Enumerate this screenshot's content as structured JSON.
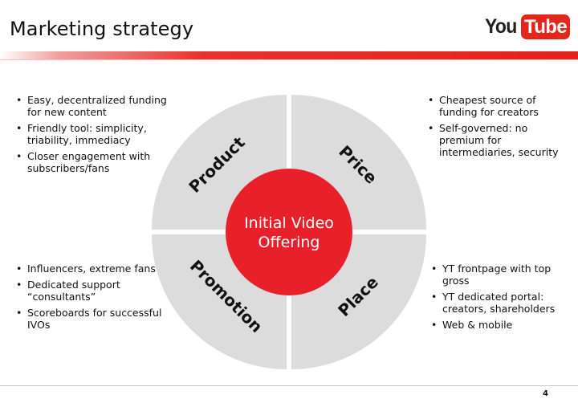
{
  "slide": {
    "title": "Marketing strategy",
    "page_number": "4"
  },
  "logo": {
    "you": "You",
    "tube": "Tube",
    "brand_red": "#e1261c"
  },
  "diagram": {
    "center_line1": "Initial Video",
    "center_line2": "Offering",
    "center_color": "#e8202a",
    "quadrant_color": "#dcdcdc",
    "quadrants": {
      "product": "Product",
      "price": "Price",
      "promotion": "Promotion",
      "place": "Place"
    }
  },
  "product_bullets": [
    "Easy, decentralized funding for new content",
    "Friendly tool: simplicity, triability, immediacy",
    "Closer engagement with subscribers/fans"
  ],
  "price_bullets": [
    "Cheapest source of funding for creators",
    "Self-governed: no premium for intermediaries, security"
  ],
  "promotion_bullets": [
    "Influencers, extreme fans",
    "Dedicated support “consultants”",
    "Scoreboards for successful IVOs"
  ],
  "place_bullets": [
    "YT frontpage with top gross",
    "YT dedicated portal: creators, shareholders",
    "Web & mobile"
  ]
}
